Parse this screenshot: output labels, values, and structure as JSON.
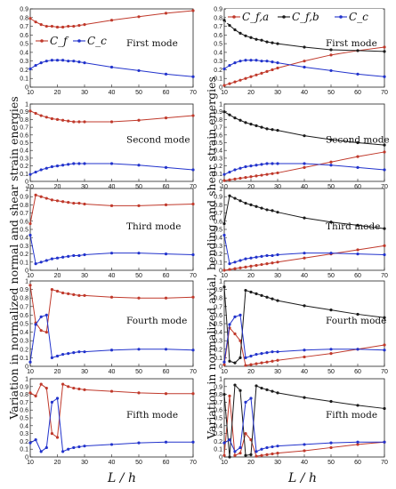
{
  "figure": {
    "left_ylabel": "Variation in normalized normal and shear strain energies",
    "right_ylabel": "Variation in normalized axial, bending and shear strain energies",
    "xlabel_left": "L / h",
    "xlabel_right": "L / h",
    "legend_left": [
      "C_f",
      "C_c"
    ],
    "legend_right": [
      "C_f,a",
      "C_f,b",
      "C_c"
    ]
  },
  "colors": {
    "Cf": "#c0392b",
    "Cf_a": "#c0392b",
    "Cf_b": "#1a1a1a",
    "Cc": "#2233cc"
  },
  "chart_data": [
    {
      "type": "line",
      "column": "left",
      "mode": "First mode",
      "x": [
        10,
        12,
        14,
        16,
        18,
        20,
        22,
        24,
        26,
        28,
        30,
        40,
        50,
        60,
        70
      ],
      "xlim": [
        10,
        70
      ],
      "ylim": [
        0,
        0.9
      ],
      "ticks": [
        "0",
        "0.1",
        "0.2",
        "0.3",
        "0.4",
        "0.5",
        "0.6",
        "0.7",
        "0.8",
        "0.9"
      ],
      "series": [
        {
          "name": "C_f",
          "values": [
            0.79,
            0.75,
            0.72,
            0.7,
            0.7,
            0.69,
            0.69,
            0.7,
            0.7,
            0.71,
            0.72,
            0.77,
            0.81,
            0.85,
            0.88
          ]
        },
        {
          "name": "C_c",
          "values": [
            0.21,
            0.25,
            0.28,
            0.3,
            0.31,
            0.31,
            0.31,
            0.3,
            0.3,
            0.29,
            0.28,
            0.23,
            0.19,
            0.15,
            0.12
          ]
        }
      ]
    },
    {
      "type": "line",
      "column": "left",
      "mode": "Second mode",
      "x": [
        10,
        12,
        14,
        16,
        18,
        20,
        22,
        24,
        26,
        28,
        30,
        40,
        50,
        60,
        70
      ],
      "xlim": [
        10,
        70
      ],
      "ylim": [
        0,
        1
      ],
      "ticks": [
        "0",
        "0.1",
        "0.2",
        "0.3",
        "0.4",
        "0.5",
        "0.6",
        "0.7",
        "0.8",
        "0.9",
        "1"
      ],
      "series": [
        {
          "name": "C_f",
          "values": [
            0.91,
            0.88,
            0.85,
            0.83,
            0.81,
            0.8,
            0.79,
            0.78,
            0.77,
            0.77,
            0.77,
            0.77,
            0.79,
            0.82,
            0.85
          ]
        },
        {
          "name": "C_c",
          "values": [
            0.09,
            0.12,
            0.15,
            0.17,
            0.19,
            0.2,
            0.21,
            0.22,
            0.23,
            0.23,
            0.23,
            0.23,
            0.21,
            0.18,
            0.15
          ]
        }
      ]
    },
    {
      "type": "line",
      "column": "left",
      "mode": "Third mode",
      "x": [
        10,
        12,
        14,
        16,
        18,
        20,
        22,
        24,
        26,
        28,
        30,
        40,
        50,
        60,
        70
      ],
      "xlim": [
        10,
        70
      ],
      "ylim": [
        0,
        1
      ],
      "ticks": [
        "0",
        "0.1",
        "0.2",
        "0.3",
        "0.4",
        "0.5",
        "0.6",
        "0.7",
        "0.8",
        "0.9",
        "1"
      ],
      "series": [
        {
          "name": "C_f",
          "values": [
            0.57,
            0.92,
            0.9,
            0.88,
            0.86,
            0.85,
            0.84,
            0.83,
            0.82,
            0.82,
            0.81,
            0.79,
            0.79,
            0.8,
            0.81
          ]
        },
        {
          "name": "C_c",
          "values": [
            0.43,
            0.08,
            0.1,
            0.12,
            0.14,
            0.15,
            0.16,
            0.17,
            0.18,
            0.18,
            0.19,
            0.21,
            0.21,
            0.2,
            0.19
          ]
        }
      ]
    },
    {
      "type": "line",
      "column": "left",
      "mode": "Fourth mode",
      "x": [
        10,
        12,
        14,
        16,
        18,
        20,
        22,
        24,
        26,
        28,
        30,
        40,
        50,
        60,
        70
      ],
      "xlim": [
        10,
        70
      ],
      "ylim": [
        0,
        1
      ],
      "ticks": [
        "0",
        "0.1",
        "0.2",
        "0.3",
        "0.4",
        "0.5",
        "0.6",
        "0.7",
        "0.8",
        "0.9",
        "1"
      ],
      "series": [
        {
          "name": "C_f",
          "values": [
            0.95,
            0.51,
            0.42,
            0.4,
            0.9,
            0.88,
            0.86,
            0.85,
            0.84,
            0.83,
            0.83,
            0.81,
            0.8,
            0.8,
            0.81
          ]
        },
        {
          "name": "C_c",
          "values": [
            0.05,
            0.49,
            0.58,
            0.6,
            0.1,
            0.12,
            0.14,
            0.15,
            0.16,
            0.17,
            0.17,
            0.19,
            0.2,
            0.2,
            0.19
          ]
        }
      ]
    },
    {
      "type": "line",
      "column": "left",
      "mode": "Fifth mode",
      "x": [
        10,
        12,
        14,
        16,
        18,
        20,
        22,
        24,
        26,
        28,
        30,
        40,
        50,
        60,
        70
      ],
      "xlim": [
        10,
        70
      ],
      "ylim": [
        0,
        1
      ],
      "ticks": [
        "0",
        "0.1",
        "0.2",
        "0.3",
        "0.4",
        "0.5",
        "0.6",
        "0.7",
        "0.8",
        "0.9",
        "1"
      ],
      "series": [
        {
          "name": "C_f",
          "values": [
            0.82,
            0.78,
            0.93,
            0.88,
            0.3,
            0.25,
            0.93,
            0.9,
            0.88,
            0.87,
            0.86,
            0.84,
            0.82,
            0.81,
            0.81
          ]
        },
        {
          "name": "C_c",
          "values": [
            0.18,
            0.22,
            0.07,
            0.12,
            0.7,
            0.75,
            0.07,
            0.1,
            0.12,
            0.13,
            0.14,
            0.16,
            0.18,
            0.19,
            0.19
          ]
        }
      ]
    },
    {
      "type": "line",
      "column": "right",
      "mode": "First mode",
      "x": [
        10,
        12,
        14,
        16,
        18,
        20,
        22,
        24,
        26,
        28,
        30,
        40,
        50,
        60,
        70
      ],
      "xlim": [
        10,
        70
      ],
      "ylim": [
        0,
        0.9
      ],
      "ticks": [
        "0",
        "0.1",
        "0.2",
        "0.3",
        "0.4",
        "0.5",
        "0.6",
        "0.7",
        "0.8",
        "0.9"
      ],
      "series": [
        {
          "name": "C_f,a",
          "values": [
            0.02,
            0.04,
            0.06,
            0.08,
            0.1,
            0.12,
            0.14,
            0.16,
            0.18,
            0.2,
            0.22,
            0.3,
            0.37,
            0.42,
            0.46
          ]
        },
        {
          "name": "C_f,b",
          "values": [
            0.77,
            0.71,
            0.66,
            0.62,
            0.59,
            0.57,
            0.55,
            0.54,
            0.52,
            0.51,
            0.5,
            0.46,
            0.43,
            0.42,
            0.41
          ]
        },
        {
          "name": "C_c",
          "values": [
            0.21,
            0.25,
            0.28,
            0.3,
            0.31,
            0.31,
            0.31,
            0.3,
            0.3,
            0.29,
            0.28,
            0.23,
            0.19,
            0.15,
            0.12
          ]
        }
      ]
    },
    {
      "type": "line",
      "column": "right",
      "mode": "Second mode",
      "x": [
        10,
        12,
        14,
        16,
        18,
        20,
        22,
        24,
        26,
        28,
        30,
        40,
        50,
        60,
        70
      ],
      "xlim": [
        10,
        70
      ],
      "ylim": [
        0,
        1
      ],
      "ticks": [
        "0",
        "0.1",
        "0.2",
        "0.3",
        "0.4",
        "0.5",
        "0.6",
        "0.7",
        "0.8",
        "0.9",
        "1"
      ],
      "series": [
        {
          "name": "C_f,a",
          "values": [
            0.01,
            0.02,
            0.03,
            0.04,
            0.05,
            0.06,
            0.07,
            0.08,
            0.09,
            0.1,
            0.11,
            0.18,
            0.25,
            0.32,
            0.38
          ]
        },
        {
          "name": "C_f,b",
          "values": [
            0.9,
            0.86,
            0.82,
            0.79,
            0.76,
            0.74,
            0.72,
            0.7,
            0.68,
            0.67,
            0.66,
            0.59,
            0.54,
            0.5,
            0.47
          ]
        },
        {
          "name": "C_c",
          "values": [
            0.09,
            0.12,
            0.15,
            0.17,
            0.19,
            0.2,
            0.21,
            0.22,
            0.23,
            0.23,
            0.23,
            0.23,
            0.21,
            0.18,
            0.15
          ]
        }
      ]
    },
    {
      "type": "line",
      "column": "right",
      "mode": "Third mode",
      "x": [
        10,
        12,
        14,
        16,
        18,
        20,
        22,
        24,
        26,
        28,
        30,
        40,
        50,
        60,
        70
      ],
      "xlim": [
        10,
        70
      ],
      "ylim": [
        0,
        1
      ],
      "ticks": [
        "0",
        "0.1",
        "0.2",
        "0.3",
        "0.4",
        "0.5",
        "0.6",
        "0.7",
        "0.8",
        "0.9",
        "1"
      ],
      "series": [
        {
          "name": "C_f,a",
          "values": [
            0.0,
            0.01,
            0.02,
            0.03,
            0.04,
            0.05,
            0.06,
            0.07,
            0.08,
            0.09,
            0.1,
            0.15,
            0.2,
            0.25,
            0.3
          ]
        },
        {
          "name": "C_f,b",
          "values": [
            0.57,
            0.91,
            0.88,
            0.85,
            0.82,
            0.8,
            0.78,
            0.76,
            0.74,
            0.73,
            0.71,
            0.64,
            0.59,
            0.55,
            0.51
          ]
        },
        {
          "name": "C_c",
          "values": [
            0.43,
            0.08,
            0.1,
            0.12,
            0.14,
            0.15,
            0.16,
            0.17,
            0.18,
            0.18,
            0.19,
            0.21,
            0.21,
            0.2,
            0.19
          ]
        }
      ]
    },
    {
      "type": "line",
      "column": "right",
      "mode": "Fourth mode",
      "x": [
        10,
        12,
        14,
        16,
        18,
        20,
        22,
        24,
        26,
        28,
        30,
        40,
        50,
        60,
        70
      ],
      "xlim": [
        10,
        70
      ],
      "ylim": [
        0,
        1
      ],
      "ticks": [
        "0",
        "0.1",
        "0.2",
        "0.3",
        "0.4",
        "0.5",
        "0.6",
        "0.7",
        "0.8",
        "0.9",
        "1"
      ],
      "series": [
        {
          "name": "C_f,a",
          "values": [
            0.02,
            0.45,
            0.38,
            0.3,
            0.01,
            0.02,
            0.03,
            0.04,
            0.05,
            0.06,
            0.07,
            0.11,
            0.15,
            0.2,
            0.25
          ]
        },
        {
          "name": "C_f,b",
          "values": [
            0.93,
            0.06,
            0.04,
            0.1,
            0.89,
            0.87,
            0.85,
            0.83,
            0.81,
            0.79,
            0.77,
            0.71,
            0.66,
            0.61,
            0.57
          ]
        },
        {
          "name": "C_c",
          "values": [
            0.05,
            0.49,
            0.58,
            0.6,
            0.1,
            0.12,
            0.14,
            0.15,
            0.16,
            0.17,
            0.17,
            0.19,
            0.2,
            0.2,
            0.19
          ]
        }
      ]
    },
    {
      "type": "line",
      "column": "right",
      "mode": "Fifth mode",
      "x": [
        10,
        12,
        14,
        16,
        18,
        20,
        22,
        24,
        26,
        28,
        30,
        40,
        50,
        60,
        70
      ],
      "xlim": [
        10,
        70
      ],
      "ylim": [
        0,
        1
      ],
      "ticks": [
        "0",
        "0.1",
        "0.2",
        "0.3",
        "0.4",
        "0.5",
        "0.6",
        "0.7",
        "0.8",
        "0.9",
        "1"
      ],
      "series": [
        {
          "name": "C_f,a",
          "values": [
            0.02,
            0.78,
            0.02,
            0.05,
            0.3,
            0.22,
            0.01,
            0.02,
            0.03,
            0.04,
            0.05,
            0.08,
            0.12,
            0.16,
            0.19
          ]
        },
        {
          "name": "C_f,b",
          "values": [
            0.8,
            0.0,
            0.92,
            0.85,
            0.02,
            0.03,
            0.91,
            0.88,
            0.86,
            0.84,
            0.82,
            0.76,
            0.71,
            0.66,
            0.62
          ]
        },
        {
          "name": "C_c",
          "values": [
            0.18,
            0.22,
            0.07,
            0.12,
            0.7,
            0.75,
            0.07,
            0.1,
            0.12,
            0.13,
            0.14,
            0.16,
            0.18,
            0.19,
            0.19
          ]
        }
      ]
    }
  ],
  "xticks": [
    "10",
    "20",
    "30",
    "40",
    "50",
    "60",
    "70"
  ]
}
